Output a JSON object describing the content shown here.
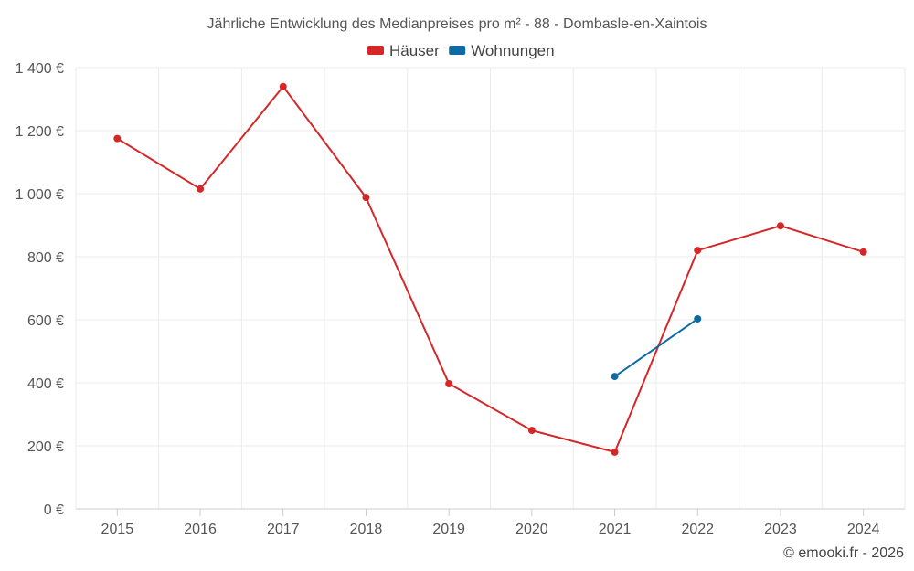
{
  "chart_data": {
    "type": "line",
    "title": "Jährliche Entwicklung des Medianpreises pro m² - 88 - Dombasle-en-Xaintois",
    "categories": [
      "2015",
      "2016",
      "2017",
      "2018",
      "2019",
      "2020",
      "2021",
      "2022",
      "2023",
      "2024"
    ],
    "series": [
      {
        "name": "Häuser",
        "color": "#d62728",
        "values": [
          1175,
          1015,
          1340,
          988,
          397,
          249,
          180,
          820,
          898,
          815
        ]
      },
      {
        "name": "Wohnungen",
        "color": "#0e6aa5",
        "values": [
          null,
          null,
          null,
          null,
          null,
          null,
          420,
          603,
          null,
          null
        ]
      }
    ],
    "ylim": [
      0,
      1400
    ],
    "yticks": [
      0,
      200,
      400,
      600,
      800,
      1000,
      1200,
      1400
    ],
    "ytick_labels": [
      "0 €",
      "200 €",
      "400 €",
      "600 €",
      "800 €",
      "1 000 €",
      "1 200 €",
      "1 400 €"
    ],
    "xlabel": "",
    "ylabel": "",
    "grid": true,
    "legend_position": "top-center"
  },
  "credit": "© emooki.fr - 2026"
}
